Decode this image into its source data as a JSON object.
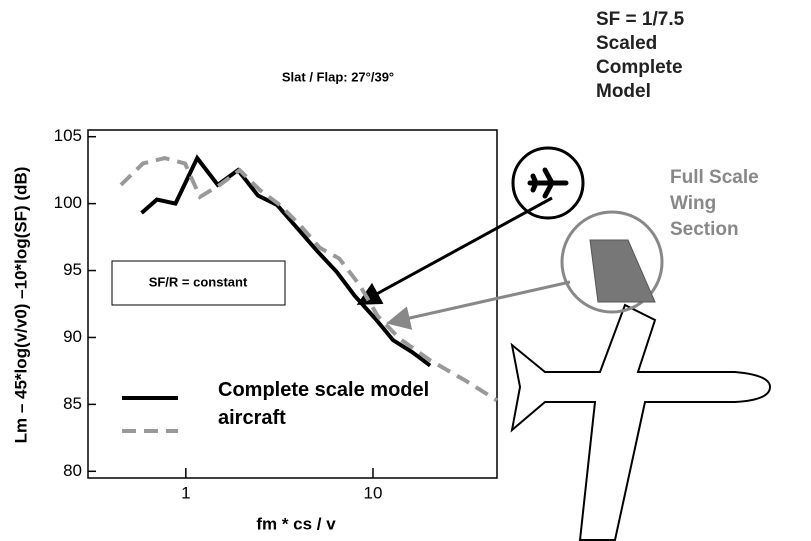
{
  "chart_data": {
    "type": "line",
    "title": "Slat / Flap: 27°/39°",
    "x_label": "fm * cs / v",
    "y_label": "Lm – 45*log(v/v0) –10*log(SF)  (dB)",
    "xscale": "log",
    "xlim": [
      0.3,
      46
    ],
    "ylim": [
      79.5,
      105.5
    ],
    "xticks": [
      1,
      10
    ],
    "yticks": [
      80,
      85,
      90,
      95,
      100,
      105
    ],
    "series": [
      {
        "name": "Complete scale model aircraft",
        "color": "#000000",
        "dash": false,
        "x": [
          0.58,
          0.7,
          0.88,
          1.15,
          1.48,
          1.9,
          2.43,
          3.07,
          3.92,
          5.0,
          6.4,
          8.0,
          10.3,
          12.8,
          16.2,
          20.2
        ],
        "values": [
          99.3,
          100.3,
          100.0,
          103.4,
          101.4,
          102.5,
          100.6,
          99.9,
          98.2,
          96.5,
          94.9,
          93.1,
          91.4,
          89.8,
          88.9,
          87.9
        ]
      },
      {
        "color": "#999999",
        "dash": true,
        "x": [
          0.45,
          0.59,
          0.77,
          0.99,
          1.19,
          1.52,
          1.94,
          2.49,
          3.18,
          4.07,
          5.2,
          6.6,
          8.5,
          10.6,
          13.9,
          20.2,
          31,
          46
        ],
        "values": [
          101.4,
          103.0,
          103.4,
          103.0,
          100.5,
          101.4,
          102.5,
          101.0,
          99.9,
          98.4,
          96.7,
          95.9,
          93.9,
          91.6,
          89.9,
          88.3,
          86.8,
          85.3
        ]
      }
    ],
    "annotations": {
      "box": "SF/R = constant",
      "model_label": [
        "SF = 1/7.5",
        "Scaled",
        "Complete",
        "Model"
      ],
      "wing_label": [
        "Full Scale",
        "Wing",
        "Section"
      ]
    }
  }
}
